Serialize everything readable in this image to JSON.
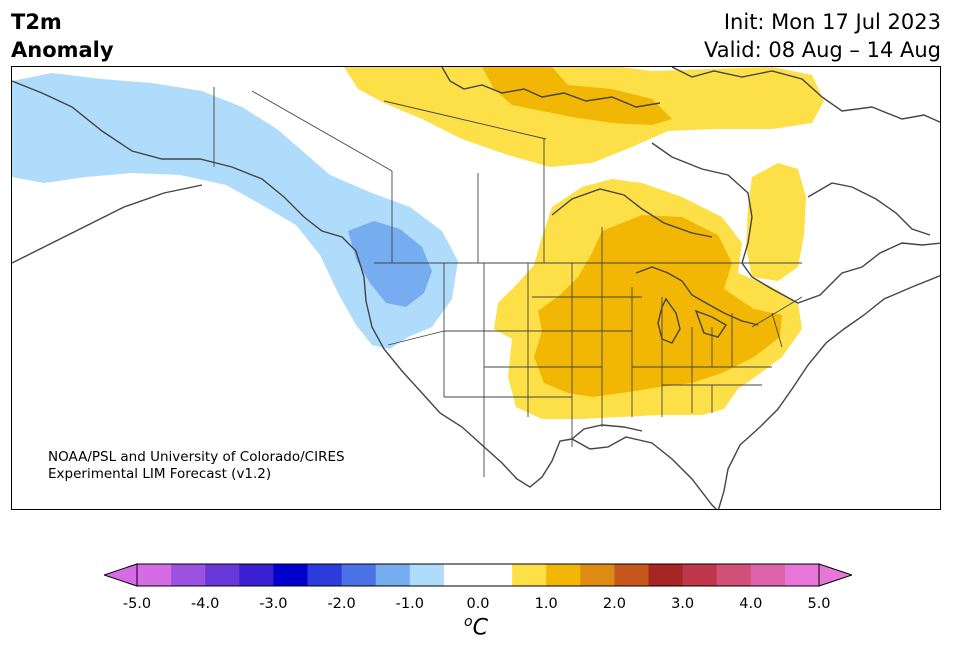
{
  "title": {
    "line1": "T2m",
    "line2": "Anomaly"
  },
  "header": {
    "init": "Init: Mon 17 Jul 2023",
    "valid": "Valid: 08 Aug – 14 Aug"
  },
  "credit": {
    "line1": "NOAA/PSL and University of Colorado/CIRES",
    "line2": "Experimental LIM Forecast (v1.2)"
  },
  "colorbar": {
    "unit_base": "C",
    "unit_super": "o",
    "ticks": [
      "-5.0",
      "-4.0",
      "-3.0",
      "-2.0",
      "-1.0",
      "0.0",
      "1.0",
      "2.0",
      "3.0",
      "4.0",
      "5.0"
    ],
    "colors": [
      "#d66be6",
      "#9b52e0",
      "#6a37d9",
      "#3a1fd1",
      "#0000cc",
      "#2b3bdc",
      "#4a71e6",
      "#76acf0",
      "#afdcfb",
      "#ffffff",
      "#ffffff",
      "#fde047",
      "#f2b705",
      "#dd8b13",
      "#c5581a",
      "#a62525",
      "#bf364a",
      "#d0507a",
      "#dd64ac",
      "#e676d8"
    ],
    "under_color": "#d66be6",
    "over_color": "#e676d8"
  },
  "map": {
    "variable": "2m temperature anomaly",
    "cold_anomaly_colors": [
      "#afdcfb",
      "#76acf0"
    ],
    "warm_anomaly_colors": [
      "#fde047",
      "#f2b705"
    ],
    "border_color": "#444444"
  }
}
